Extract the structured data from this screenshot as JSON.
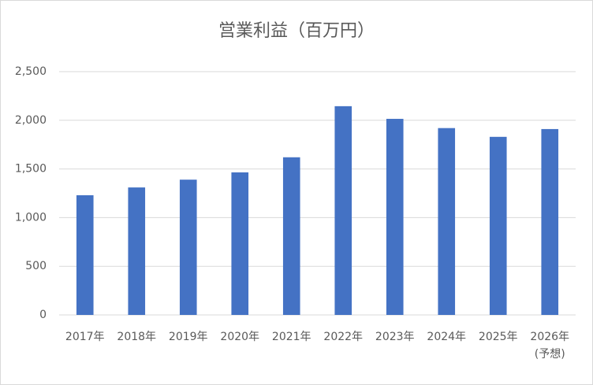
{
  "chart_data": {
    "type": "bar",
    "title": "営業利益（百万円）",
    "categories": [
      "2017年",
      "2018年",
      "2019年",
      "2020年",
      "2021年",
      "2022年",
      "2023年",
      "2024年",
      "2025年",
      "2026年(予想)"
    ],
    "values": [
      1230,
      1310,
      1390,
      1465,
      1620,
      2145,
      2015,
      1920,
      1830,
      1910
    ],
    "color": "#4472c4",
    "ylim": [
      0,
      2500
    ],
    "yticks": [
      0,
      500,
      {
        "value": 1000,
        "label": "1,000"
      },
      {
        "value": 1500,
        "label": "1,500"
      },
      {
        "value": 2000,
        "label": "2,000"
      },
      {
        "value": 2500,
        "label": "2,500"
      }
    ],
    "grid": true
  }
}
